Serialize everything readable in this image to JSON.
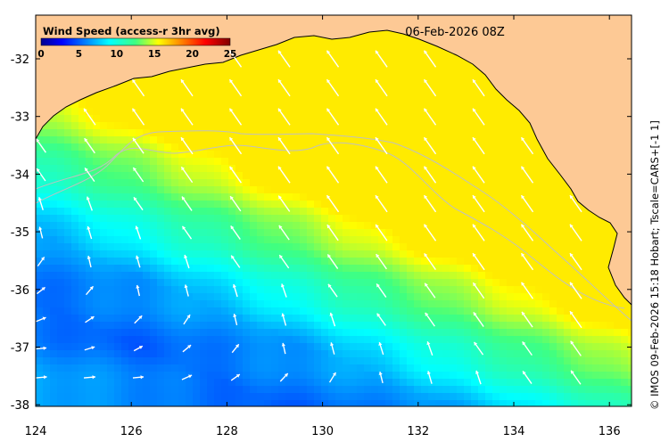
{
  "map": {
    "title": "06-Feb-2026 08Z",
    "credit": "© IMOS 09-Feb-2026 15:18 Hobart; Tscale=CARS+[-1 1]",
    "variable": "Wind Speed",
    "lon_range": [
      124,
      136.5
    ],
    "lat_range": [
      -38.1,
      -31.4
    ],
    "x_ticks": [
      "124",
      "126",
      "128",
      "130",
      "132",
      "134",
      "136"
    ],
    "y_ticks": [
      "-32",
      "-33",
      "-34",
      "-35",
      "-36",
      "-37",
      "-38"
    ],
    "land_color": "#fdc995",
    "contour_color": "#c0c0c0",
    "vector_color": "#ffffff"
  },
  "colorbar": {
    "title": "Wind Speed (access-r 3hr avg)",
    "ticks": [
      "0",
      "5",
      "10",
      "15",
      "20",
      "25"
    ],
    "colormap": "jet",
    "range": [
      0,
      25
    ]
  }
}
